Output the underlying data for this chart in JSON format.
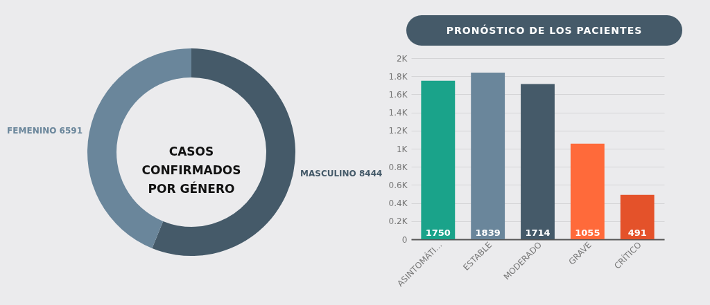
{
  "chart_data": [
    {
      "type": "donut",
      "title": "CASOS\nCONFIRMADOS\nPOR GÉNERO",
      "categories": [
        "MASCULINO",
        "FEMENINO"
      ],
      "values": [
        8444,
        6591
      ],
      "colors": [
        "#455a69",
        "#6a869b"
      ],
      "data_labels": true,
      "legend": false
    },
    {
      "type": "bar",
      "title": "PRONÓSTICO DE LOS PACIENTES",
      "categories": [
        "ASINTOMÁTI...",
        "ESTABLE",
        "MODERADO",
        "GRAVE",
        "CRÍTICO"
      ],
      "values": [
        1750,
        1839,
        1714,
        1055,
        491
      ],
      "colors": [
        "#1aa38a",
        "#6a869b",
        "#455a69",
        "#ff6a3a",
        "#e4522a"
      ],
      "ylim": [
        0,
        2000
      ],
      "yticks": [
        0,
        {
          "value": 200,
          "label": "0.2K"
        },
        {
          "value": 400,
          "label": "0.4K"
        },
        {
          "value": 600,
          "label": "0.6K"
        },
        {
          "value": 800,
          "label": "0.8K"
        },
        {
          "value": 1000,
          "label": "1K"
        },
        {
          "value": 1200,
          "label": "1.2K"
        },
        {
          "value": 1400,
          "label": "1.4K"
        },
        {
          "value": 1600,
          "label": "1.6K"
        },
        {
          "value": 1800,
          "label": "1.8K"
        },
        {
          "value": 2000,
          "label": "2K"
        }
      ],
      "grid": "y",
      "data_labels": true,
      "legend": false
    }
  ]
}
